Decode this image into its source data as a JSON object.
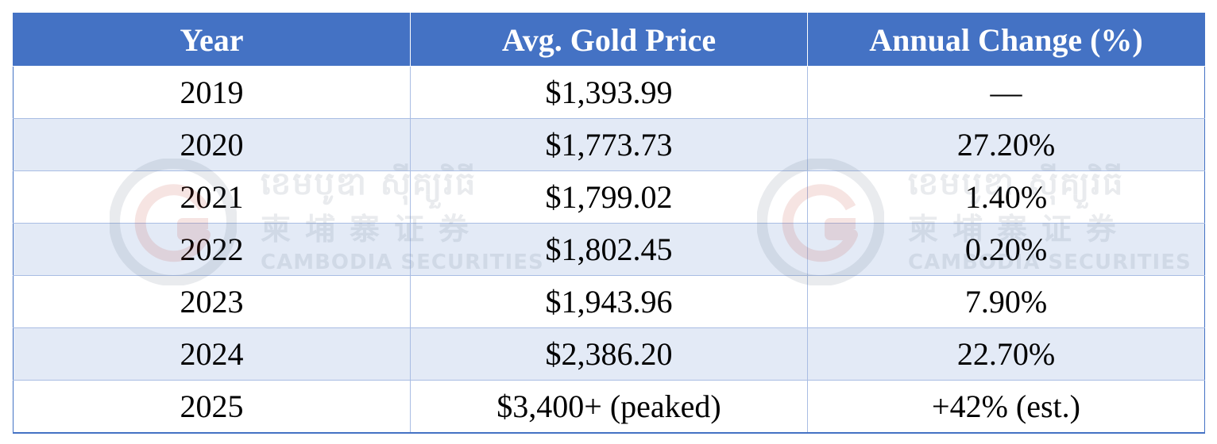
{
  "chart_data": {
    "type": "table",
    "columns": [
      "Year",
      "Avg. Gold Price",
      "Annual Change (%)"
    ],
    "rows": [
      [
        "2019",
        "$1,393.99",
        "—"
      ],
      [
        "2020",
        "$1,773.73",
        "27.20%"
      ],
      [
        "2021",
        "$1,799.02",
        "1.40%"
      ],
      [
        "2022",
        "$1,802.45",
        "0.20%"
      ],
      [
        "2023",
        "$1,943.96",
        "7.90%"
      ],
      [
        "2024",
        "$2,386.20",
        "22.70%"
      ],
      [
        "2025",
        "$3,400+ (peaked)",
        "+42% (est.)"
      ]
    ]
  },
  "watermark": {
    "khmer": "ខេមបូឌា ស៊ីគ្យួរិធី",
    "chinese": "柬埔寨证券",
    "english": "CAMBODIA SECURITIES",
    "logo_icon": "cambodia-securities-logo-icon"
  },
  "colors": {
    "header_bg": "#4472c4",
    "header_text": "#ffffff",
    "band_bg": "#dae3f3",
    "border": "#a9bde3"
  }
}
